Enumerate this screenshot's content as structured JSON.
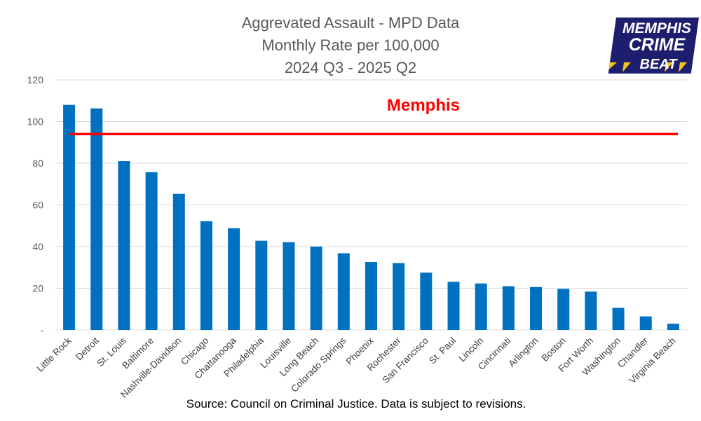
{
  "chart_data": {
    "type": "bar",
    "title": [
      "Aggrevated Assault - MPD Data",
      "Monthly Rate per 100,000",
      "2024 Q3 - 2025 Q2"
    ],
    "categories": [
      "Little Rock",
      "Detroit",
      "St. Louis",
      "Baltimore",
      "Nashville-Davidson",
      "Chicago",
      "Chattanooga",
      "Philadelphia",
      "Louisville",
      "Long Beach",
      "Colorado Springs",
      "Phoenix",
      "Rochester",
      "San Francisco",
      "St. Paul",
      "Lincoln",
      "Cincinnati",
      "Arlington",
      "Boston",
      "Fort Worth",
      "Washington",
      "Chandler",
      "Virginia Beach"
    ],
    "values": [
      108,
      106.3,
      81,
      75.7,
      65.3,
      52.2,
      48.8,
      42.8,
      42.1,
      40,
      36.8,
      32.6,
      32.1,
      27.5,
      23.1,
      22.3,
      21,
      20.6,
      19.7,
      18.4,
      10.6,
      6.5,
      3
    ],
    "ylim": [
      0,
      120
    ],
    "yticks": [
      0,
      20,
      40,
      60,
      80,
      100,
      120
    ],
    "ytick_labels": [
      "-",
      "20",
      "40",
      "60",
      "80",
      "100",
      "120"
    ],
    "grid": true,
    "reference_line": {
      "label": "Memphis",
      "value": 94
    },
    "bar_color": "#0070c0",
    "reference_color": "#ff0000"
  },
  "source_note": "Source: Council on Criminal Justice.  Data is subject to revisions.",
  "logo": {
    "lines": [
      "MEMPHIS",
      "CRIME",
      "BEAT"
    ],
    "background_color": "#1e1e6e",
    "stripe_color": "#f5c518"
  }
}
